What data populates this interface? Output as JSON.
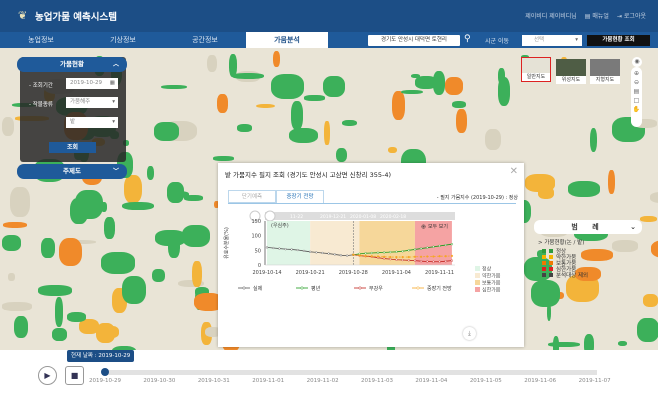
{
  "header": {
    "title": "농업가뭄 예측시스템",
    "user": "제이비디 제이비디님",
    "manual": "매뉴얼",
    "logout": "로그아웃"
  },
  "nav": {
    "tabs": [
      {
        "label": "농업정보"
      },
      {
        "label": "기상정보"
      },
      {
        "label": "공간정보"
      },
      {
        "label": "가뭄분석",
        "active": true
      }
    ],
    "location": "경기도 안성시 대덕면 토현리",
    "sigun_label": "시군 이동",
    "sigun_select": "선택",
    "drought_button": "가뭄현황 조회"
  },
  "left_panel": {
    "title": "가뭄현황",
    "period_label": "- 조회기간",
    "period_value": "2019-10-29",
    "crop_label": "- 작물종류",
    "crop_value": "가뭄해주",
    "crop_sub": "밭",
    "query_button": "조회",
    "theme_title": "주제도"
  },
  "basemaps": [
    {
      "label": "일반지도",
      "active": true
    },
    {
      "label": "위성지도"
    },
    {
      "label": "지형지도"
    }
  ],
  "legend": {
    "title": "범 례",
    "group": "> 가뭄현황(논 / 밭)",
    "items": [
      {
        "label": "정상",
        "color": "#2e9a3e"
      },
      {
        "label": "약한가뭄",
        "color": "#f4b400"
      },
      {
        "label": "보통가뭄",
        "color": "#f07800"
      },
      {
        "label": "심한가뭄",
        "color": "#e02020"
      },
      {
        "label": "분석대상 제외",
        "color": "#444444"
      }
    ]
  },
  "modal": {
    "title": "밭 가뭄지수 필지 조회 (경기도 안성시 고삼면 신창리 355-4)",
    "tabs": [
      "단기예측",
      "중장기 전망"
    ],
    "active_tab": 1,
    "index_info": "- 필지 가뭄지수 (2019-10-29) : 정상",
    "download_icon": "download-icon"
  },
  "chart_data": {
    "type": "line",
    "ylabel": "유효수분율(%)",
    "ylim": [
      0,
      150
    ],
    "yticks": [
      0,
      50,
      100,
      150
    ],
    "xticks": [
      "2019-10-14",
      "2019-10-21",
      "2019-10-28",
      "2019-11-04",
      "2019-11-11"
    ],
    "x": [
      "2019-10-14",
      "2019-10-15",
      "2019-10-16",
      "2019-10-17",
      "2019-10-18",
      "2019-10-19",
      "2019-10-20",
      "2019-10-21",
      "2019-10-22",
      "2019-10-23",
      "2019-10-24",
      "2019-10-25",
      "2019-10-26",
      "2019-10-27",
      "2019-10-28",
      "2019-10-29",
      "2019-10-30",
      "2019-10-31",
      "2019-11-01",
      "2019-11-02",
      "2019-11-03",
      "2019-11-04",
      "2019-11-05",
      "2019-11-06",
      "2019-11-07",
      "2019-11-08",
      "2019-11-09",
      "2019-11-10",
      "2019-11-11",
      "2019-11-12",
      "2019-11-13"
    ],
    "series": [
      {
        "name": "실제",
        "color": "#555555",
        "values": [
          60,
          58,
          56,
          54,
          53,
          51,
          48,
          45,
          43,
          41,
          39,
          36,
          33,
          32,
          35,
          null,
          null,
          null,
          null,
          null,
          null,
          null,
          null,
          null,
          null,
          null,
          null,
          null,
          null,
          null,
          null
        ]
      },
      {
        "name": "평년",
        "color": "#1a9a1a",
        "values": [
          null,
          null,
          null,
          null,
          null,
          null,
          null,
          null,
          null,
          null,
          null,
          null,
          null,
          null,
          35,
          38,
          40,
          41,
          42,
          43,
          44,
          45,
          47,
          50,
          53,
          56,
          59,
          62,
          65,
          68,
          71
        ]
      },
      {
        "name": "무강우",
        "color": "#c0201a",
        "values": [
          null,
          null,
          null,
          null,
          null,
          null,
          null,
          null,
          null,
          null,
          null,
          null,
          null,
          null,
          35,
          32,
          30,
          28,
          25,
          22,
          20,
          18,
          17,
          16,
          15,
          13,
          12,
          11,
          11,
          13,
          15
        ]
      },
      {
        "name": "중장기 전망",
        "color": "#f5a623",
        "dashed": true,
        "values": [
          null,
          null,
          null,
          null,
          null,
          null,
          null,
          null,
          null,
          null,
          null,
          null,
          null,
          null,
          35,
          33,
          31,
          30,
          29,
          28,
          27,
          27,
          27,
          27,
          28,
          28,
          29,
          29,
          30,
          30,
          31
        ]
      }
    ],
    "bands": [
      {
        "label": "정상",
        "from": "2019-10-14",
        "to": "2019-10-21",
        "color": "#dff5e6"
      },
      {
        "label": "약한가뭄",
        "from": "2019-10-21",
        "to": "2019-10-29",
        "color": "#f8ead2"
      },
      {
        "label": "보통가뭄",
        "from": "2019-10-29",
        "to": "2019-11-07",
        "color": "#f6d79a"
      },
      {
        "label": "심한가뭄",
        "from": "2019-11-07",
        "to": "2019-11-13",
        "color": "#f5a3a3"
      }
    ],
    "today": "2019-10-28",
    "annotation": "(우심주)",
    "reset_zoom": "모두 보기",
    "navigator_labels": [
      "11-22",
      "2019-12-21",
      "2020-01-08",
      "2020-02-18"
    ]
  },
  "timeline": {
    "current_label": "현재 날짜 : 2019-10-29",
    "progress": 0,
    "dates": [
      "2019-10-29",
      "2019-10-30",
      "2019-10-31",
      "2019-11-01",
      "2019-11-02",
      "2019-11-03",
      "2019-11-04",
      "2019-11-05",
      "2019-11-06",
      "2019-11-07"
    ]
  }
}
